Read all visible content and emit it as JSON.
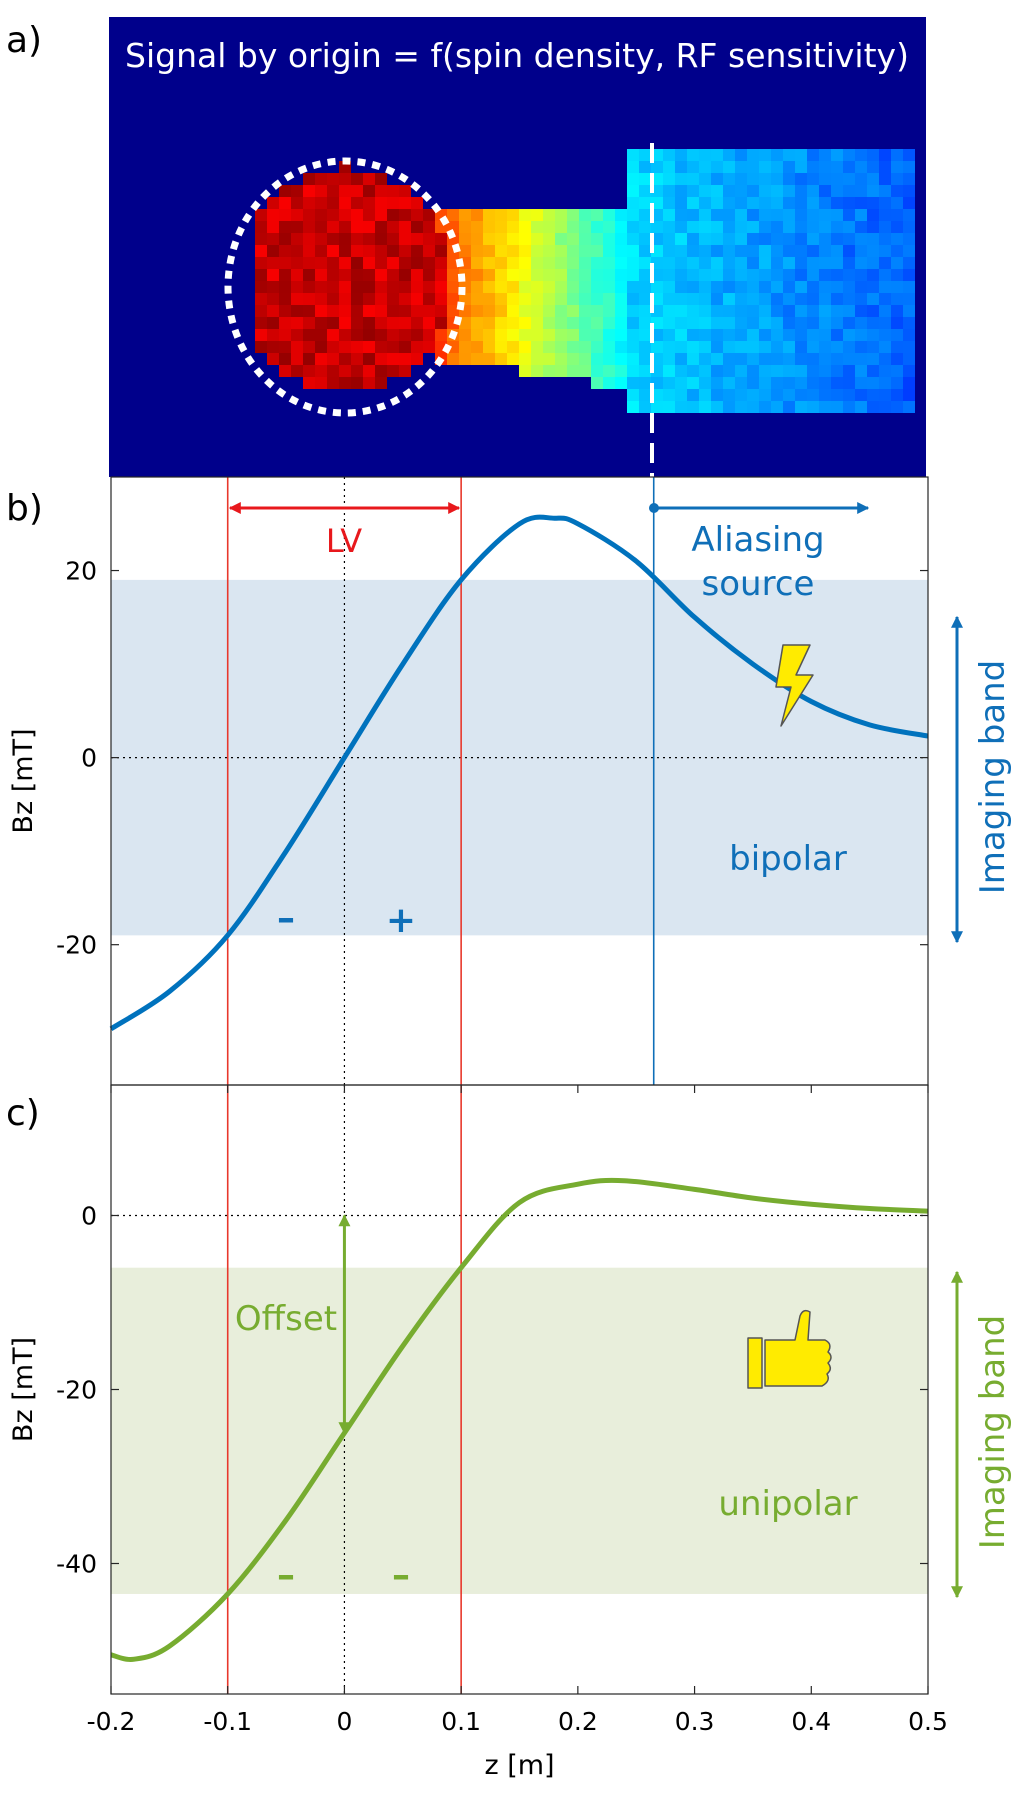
{
  "panel_labels": [
    "a)",
    "b)",
    "c)"
  ],
  "image_panel": {
    "title": "Signal by origin = f(spin density, RF sensitivity)",
    "background": "#00008b"
  },
  "colors": {
    "blue_curve": "#0072bd",
    "blue_band": "#dae6f1",
    "green_curve": "#77ac30",
    "green_band": "#e8eedb",
    "red_lines": "#e8382c",
    "annotation_red": "#e8181c",
    "annotation_blue": "#0f6fb8",
    "annotation_green": "#77ac30",
    "icon_yellow": "#ffeb00"
  },
  "annotations": {
    "lv": "LV",
    "aliasing_1": "Aliasing",
    "aliasing_2": "source",
    "bipolar": "bipolar",
    "unipolar": "unipolar",
    "offset": "Offset",
    "imaging_band_b": "Imaging band",
    "imaging_band_c": "Imaging band",
    "minus_b": "–",
    "plus_b": "+",
    "minus_c1": "–",
    "minus_c2": "–",
    "lightning_icon": "lightning-icon",
    "thumbs_icon": "thumbs-up-icon"
  },
  "chart_data": [
    {
      "panel": "b",
      "type": "line",
      "xlabel": "",
      "ylabel": "Bz [mT]",
      "xlim": [
        -0.2,
        0.5
      ],
      "ylim": [
        -35,
        30
      ],
      "yticks": [
        -20,
        0,
        20
      ],
      "ytick_labels": [
        "-20",
        "0",
        "20"
      ],
      "zero_line": true,
      "vertical_lines": [
        -0.1,
        0.1
      ],
      "aliasing_line": 0.265,
      "band": [
        -19,
        19
      ],
      "series": [
        {
          "x": [
            -0.2,
            -0.15,
            -0.1,
            -0.05,
            0.0,
            0.05,
            0.1,
            0.15,
            0.18,
            0.2,
            0.25,
            0.3,
            0.35,
            0.4,
            0.45,
            0.5
          ],
          "y": [
            -29,
            -25,
            -19,
            -10,
            0,
            10,
            19,
            25,
            25.6,
            25,
            21,
            15,
            10,
            6,
            3.5,
            2.3
          ]
        }
      ]
    },
    {
      "panel": "c",
      "type": "line",
      "xlabel": "z [m]",
      "ylabel": "Bz [mT]",
      "xlim": [
        -0.2,
        0.5
      ],
      "ylim": [
        -55,
        15
      ],
      "xticks": [
        -0.2,
        -0.1,
        0,
        0.1,
        0.2,
        0.3,
        0.4,
        0.5
      ],
      "xtick_labels": [
        "-0.2",
        "-0.1",
        "0",
        "0.1",
        "0.2",
        "0.3",
        "0.4",
        "0.5"
      ],
      "yticks": [
        -40,
        -20,
        0
      ],
      "ytick_labels": [
        "-40",
        "-20",
        "0"
      ],
      "zero_line": true,
      "vertical_lines": [
        -0.1,
        0.1
      ],
      "band": [
        -43.5,
        -6
      ],
      "offset_value": -25,
      "series": [
        {
          "x": [
            -0.2,
            -0.18,
            -0.15,
            -0.1,
            -0.05,
            0.0,
            0.05,
            0.1,
            0.15,
            0.2,
            0.24,
            0.3,
            0.35,
            0.4,
            0.45,
            0.5
          ],
          "y": [
            -50.5,
            -51,
            -49.5,
            -43.5,
            -35,
            -25,
            -15,
            -6,
            1.5,
            3.6,
            4,
            3,
            2,
            1.3,
            0.8,
            0.5
          ]
        }
      ]
    }
  ]
}
